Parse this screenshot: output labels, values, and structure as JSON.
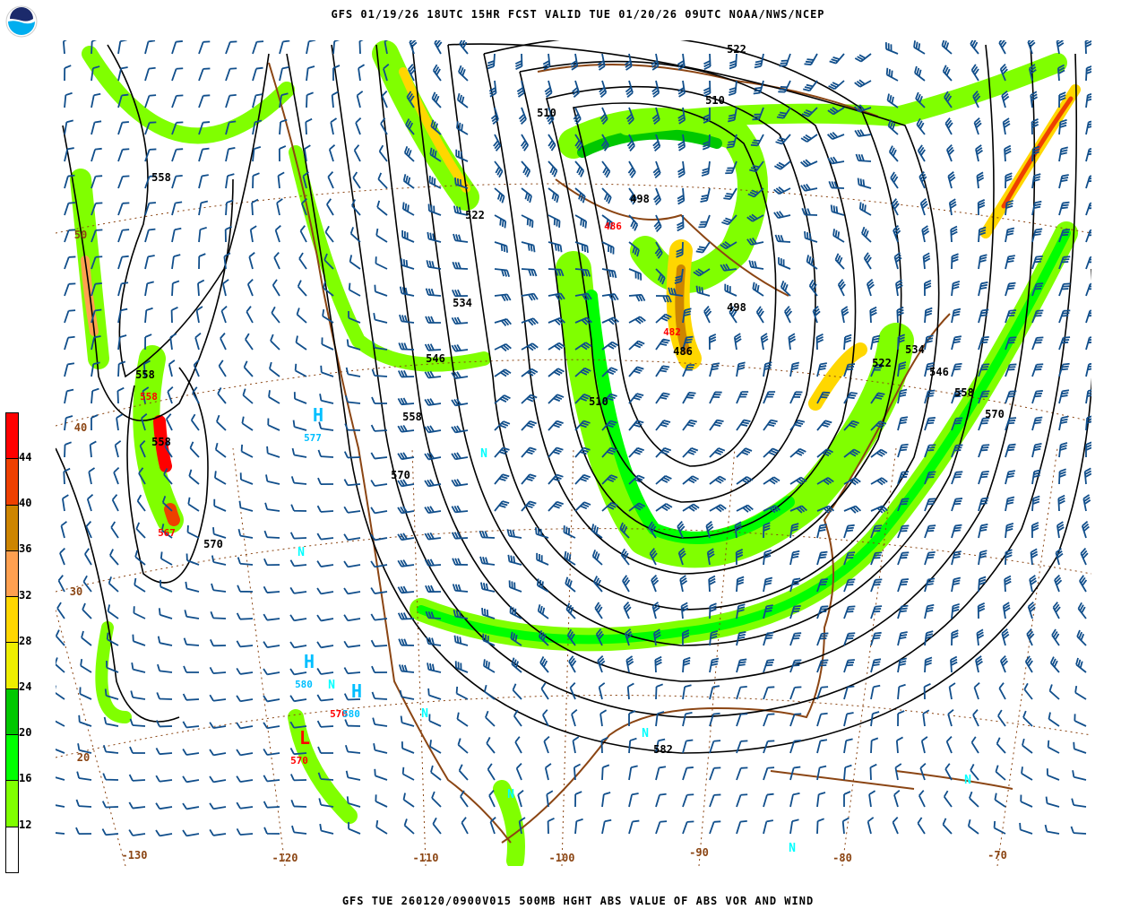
{
  "header": {
    "title": "GFS 01/19/26 18UTC 15HR FCST VALID TUE 01/20/26 09UTC NOAA/NWS/NCEP",
    "logo_text": "NOAA"
  },
  "footer": {
    "caption": "GFS TUE 260120/0900V015 500MB HGHT ABS VALUE OF ABS VOR AND WIND"
  },
  "colorbar": {
    "colors": [
      "#ff0000",
      "#ee4000",
      "#cd8500",
      "#ffa050",
      "#ffd700",
      "#eeee00",
      "#00c800",
      "#00ff00",
      "#80ff00",
      "#ffffff"
    ],
    "ticks": [
      "44",
      "40",
      "36",
      "32",
      "28",
      "24",
      "20",
      "16",
      "12"
    ]
  },
  "map": {
    "colors": {
      "contour": "#000000",
      "coast": "#8b4513",
      "barb": "#104e8b",
      "high_low": "#00bfff",
      "max_label": "#ff0000"
    },
    "latitude_labels": [
      "50",
      "40",
      "30",
      "20"
    ],
    "longitude_labels": [
      "-130",
      "-120",
      "-110",
      "-100",
      "-90",
      "-80",
      "-70"
    ],
    "height_labels": [
      "522",
      "510",
      "510",
      "522",
      "498",
      "558",
      "534",
      "546",
      "558",
      "570",
      "510",
      "498",
      "486",
      "522",
      "534",
      "546",
      "558",
      "570",
      "558",
      "558",
      "570",
      "582"
    ],
    "max_labels": [
      "486",
      "482",
      "558",
      "567",
      "570"
    ],
    "centers": [
      {
        "letter": "H",
        "value": "577"
      },
      {
        "letter": "H",
        "value": "580"
      },
      {
        "letter": "H",
        "value": "580"
      },
      {
        "letter": "L",
        "value": "570"
      }
    ],
    "north_markers": [
      "N",
      "N",
      "N",
      "N",
      "N",
      "N",
      "N",
      "N"
    ]
  }
}
